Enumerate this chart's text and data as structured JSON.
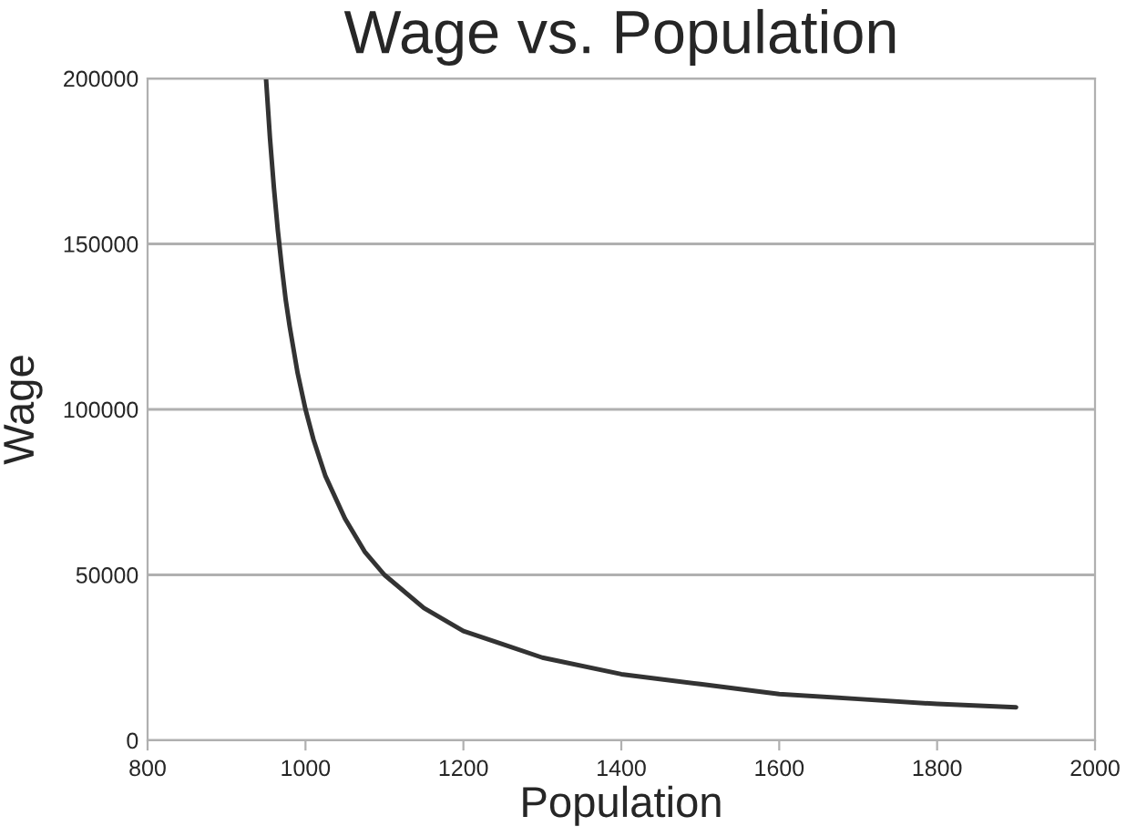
{
  "chart_data": {
    "type": "line",
    "title": "Wage vs. Population",
    "xlabel": "Population",
    "ylabel": "Wage",
    "x": [
      950,
      955,
      960,
      965,
      970,
      975,
      980,
      990,
      1000,
      1010,
      1025,
      1050,
      1075,
      1100,
      1150,
      1200,
      1250,
      1300,
      1400,
      1500,
      1600,
      1700,
      1800,
      1900
    ],
    "series": [
      {
        "color": "#333333",
        "values": [
          200000,
          182000,
          167000,
          154000,
          143000,
          133000,
          125000,
          111000,
          100000,
          91000,
          80000,
          67000,
          57000,
          50000,
          40000,
          33000,
          29000,
          25000,
          20000,
          17000,
          14000,
          12500,
          11000,
          10000
        ]
      }
    ],
    "xlim": [
      800,
      2000
    ],
    "xticks": [
      800,
      1000,
      1200,
      1400,
      1600,
      1800,
      2000
    ],
    "ylim": [
      0,
      200000
    ],
    "yticks": [
      0,
      50000,
      100000,
      150000,
      200000
    ],
    "grid": "y",
    "legend": false,
    "marker": "none",
    "line_style": "solid"
  }
}
